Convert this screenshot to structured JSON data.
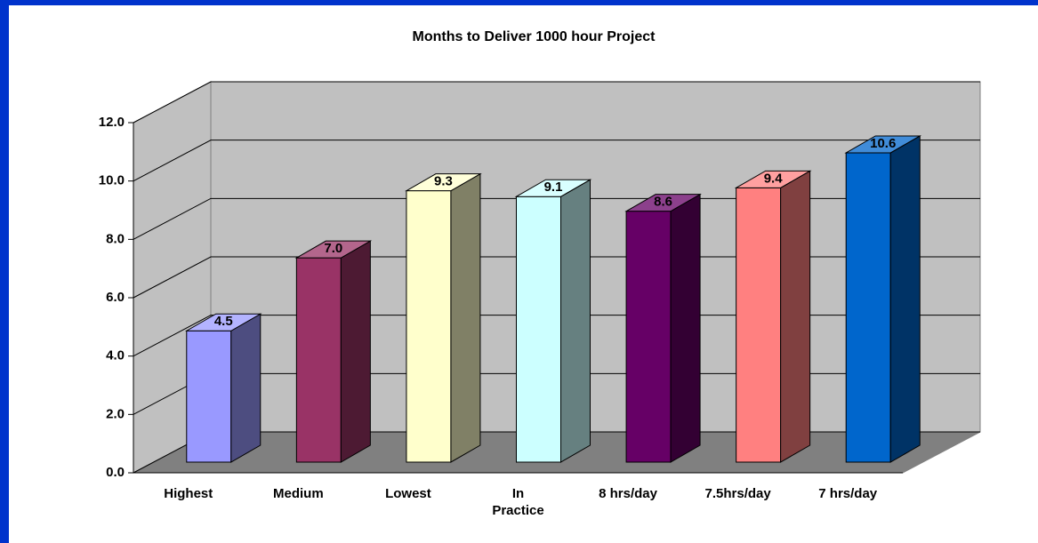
{
  "chart_data": {
    "type": "bar3d",
    "title": "Months to Deliver 1000 hour Project",
    "categories": [
      "Highest",
      "Medium",
      "Lowest",
      "In Practice",
      "8 hrs/day",
      "7.5hrs/day",
      "7 hrs/day"
    ],
    "values": [
      4.5,
      7.0,
      9.3,
      9.1,
      8.6,
      9.4,
      10.6
    ],
    "value_labels": [
      "4.5",
      "7.0",
      "9.3",
      "9.1",
      "8.6",
      "9.4",
      "10.6"
    ],
    "colors": [
      "#9999ff",
      "#993366",
      "#ffffcc",
      "#ccffff",
      "#660066",
      "#ff8080",
      "#0066cc"
    ],
    "ylim": [
      0,
      12
    ],
    "yticks": [
      {
        "value": 0,
        "label": "0.0"
      },
      {
        "value": 2,
        "label": "2.0"
      },
      {
        "value": 4,
        "label": "4.0"
      },
      {
        "value": 6,
        "label": "6.0"
      },
      {
        "value": 8,
        "label": "8.0"
      },
      {
        "value": 10,
        "label": "10.0"
      },
      {
        "value": 12,
        "label": "12.0"
      }
    ],
    "grid": true
  }
}
